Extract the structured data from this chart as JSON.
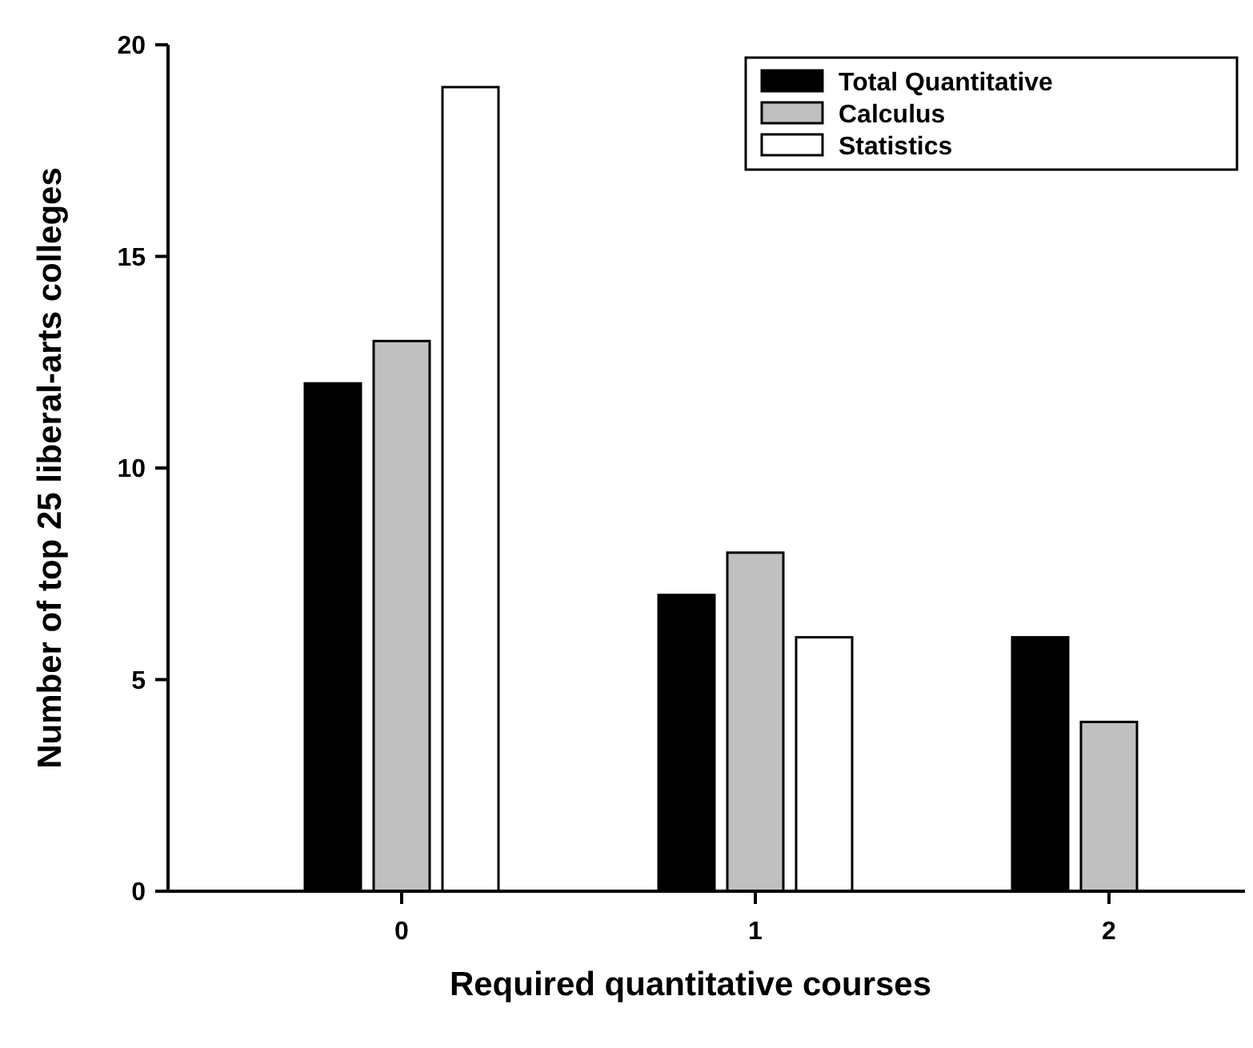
{
  "chart_data": {
    "type": "bar",
    "xlabel": "Required quantitative courses",
    "ylabel": "Number of top 25 liberal-arts colleges",
    "categories": [
      "0",
      "1",
      "2"
    ],
    "series": [
      {
        "name": "Total Quantitative",
        "color": "#000000",
        "values": [
          12,
          7,
          6
        ]
      },
      {
        "name": "Calculus",
        "color": "#c0c0c0",
        "values": [
          13,
          8,
          4
        ]
      },
      {
        "name": "Statistics",
        "color": "#ffffff",
        "values": [
          19,
          6,
          0
        ]
      }
    ],
    "ylim": [
      0,
      20
    ],
    "yticks": [
      0,
      5,
      10,
      15,
      20
    ],
    "legend": "top right",
    "grid": false
  }
}
